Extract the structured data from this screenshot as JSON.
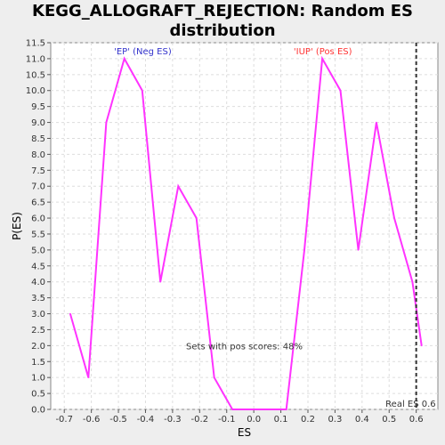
{
  "chart_data": {
    "type": "line",
    "title_line1": "KEGG_ALLOGRAFT_REJECTION: Random ES",
    "title_line2": "distribution",
    "xlabel": "ES",
    "ylabel": "P(ES)",
    "xlim": [
      -0.75,
      0.68
    ],
    "ylim": [
      0,
      11.5
    ],
    "x_ticks": [
      -0.7,
      -0.6,
      -0.5,
      -0.4,
      -0.3,
      -0.2,
      -0.1,
      0.0,
      0.1,
      0.2,
      0.3,
      0.4,
      0.5,
      0.6
    ],
    "x_tick_labels": [
      "-0.7",
      "-0.6",
      "-0.5",
      "-0.4",
      "-0.3",
      "-0.2",
      "-0.1",
      "0.0",
      "0.1",
      "0.2",
      "0.3",
      "0.4",
      "0.5",
      "0.6"
    ],
    "y_ticks": [
      0,
      0.5,
      1,
      1.5,
      2,
      2.5,
      3,
      3.5,
      4,
      4.5,
      5,
      5.5,
      6,
      6.5,
      7,
      7.5,
      8,
      8.5,
      9,
      9.5,
      10,
      10.5,
      11,
      11.5
    ],
    "y_tick_labels": [
      "0.0",
      "0.5",
      "1.0",
      "1.5",
      "2.0",
      "2.5",
      "3.0",
      "3.5",
      "4.0",
      "4.5",
      "5.0",
      "5.5",
      "6.0",
      "6.5",
      "7.0",
      "7.5",
      "8.0",
      "8.5",
      "9.0",
      "9.5",
      "10.0",
      "10.5",
      "11.0",
      "11.5"
    ],
    "grid": true,
    "series": [
      {
        "color": "#ff33ff",
        "x": [
          -0.678,
          -0.611,
          -0.545,
          -0.478,
          -0.412,
          -0.345,
          -0.279,
          -0.212,
          -0.146,
          -0.079,
          -0.013,
          0.054,
          0.12,
          0.187,
          0.253,
          0.32,
          0.386,
          0.453,
          0.519,
          0.586,
          0.62
        ],
        "y": [
          3,
          1,
          9,
          11,
          10,
          4,
          7,
          6,
          1,
          0,
          0,
          0,
          0,
          5,
          11,
          10,
          5,
          9,
          6,
          4,
          2
        ]
      }
    ],
    "real_es": 0.6,
    "real_es_label": "Real ES 0.6",
    "annotations": {
      "neg_label": "'EP' (Neg ES)",
      "neg_color": "#3333cc",
      "pos_label": "'IUP' (Pos ES)",
      "pos_color": "#ff3333",
      "sets_label": "Sets with pos scores: 48%"
    }
  }
}
